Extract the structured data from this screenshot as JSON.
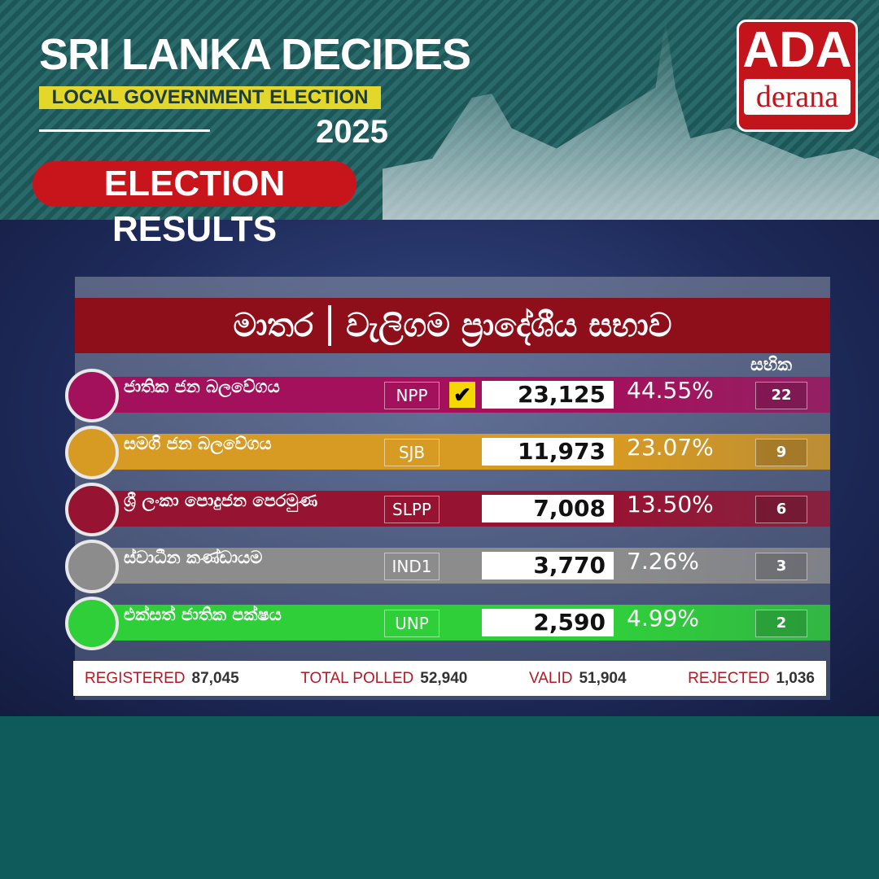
{
  "header": {
    "title": "SRI LANKA DECIDES",
    "subtitle": "LOCAL GOVERNMENT ELECTION",
    "year": "2025",
    "badge": "ELECTION RESULTS"
  },
  "logo": {
    "top": "ADA",
    "bottom": "derana"
  },
  "board": {
    "district": "මාතර",
    "council": "වැලිගම ප්‍රාදේශීය සභාව",
    "seats_header": "සභික"
  },
  "table": {
    "rows": [
      {
        "name": "ජාතික ජන බලවේගය",
        "abbr": "NPP",
        "votes": "23,125",
        "percent": "44.55%",
        "seats": "22",
        "color": "#a3115c"
      },
      {
        "name": "සමගි ජන බලවේගය",
        "abbr": "SJB",
        "votes": "11,973",
        "percent": "23.07%",
        "seats": "9",
        "color": "#d79a22"
      },
      {
        "name": "ශ්‍රී ලංකා පොදුජන පෙරමුණ",
        "abbr": "SLPP",
        "votes": "7,008",
        "percent": "13.50%",
        "seats": "6",
        "color": "#961432"
      },
      {
        "name": "ස්වාධීන කණ්ඩායම",
        "abbr": "IND1",
        "votes": "3,770",
        "percent": "7.26%",
        "seats": "3",
        "color": "#8c8c8c"
      },
      {
        "name": "එක්සත් ජාතික පක්ෂය",
        "abbr": "UNP",
        "votes": "2,590",
        "percent": "4.99%",
        "seats": "2",
        "color": "#2fcf3a"
      }
    ]
  },
  "footer": [
    {
      "label": "REGISTERED",
      "value": "87,045"
    },
    {
      "label": "TOTAL POLLED",
      "value": "52,940"
    },
    {
      "label": "VALID",
      "value": "51,904"
    },
    {
      "label": "REJECTED",
      "value": "1,036"
    }
  ]
}
